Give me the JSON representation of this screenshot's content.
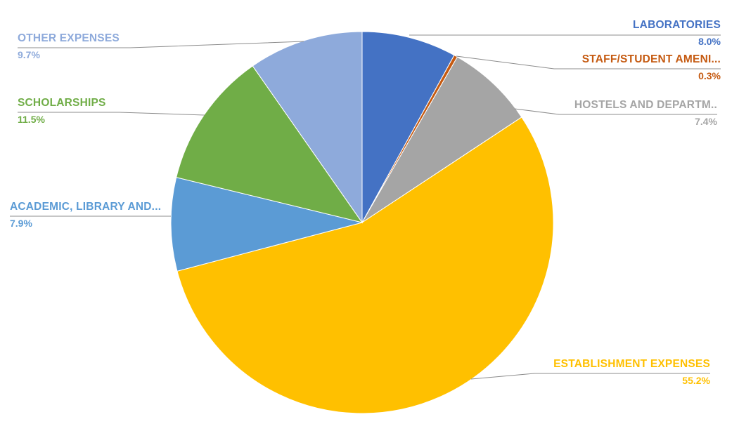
{
  "chart_data": {
    "type": "pie",
    "title": "",
    "legend_position": "none",
    "direction": "clockwise",
    "start_angle_deg": 0,
    "leader_line_color": "#8C8C8C",
    "slices": [
      {
        "label": "LABORATORIES",
        "value": 8.0,
        "pct_label": "8.0%",
        "color": "#4472C4"
      },
      {
        "label": "STAFF/STUDENT AMENI...",
        "value": 0.3,
        "pct_label": "0.3%",
        "color": "#C55A11"
      },
      {
        "label": "HOSTELS AND DEPARTM..",
        "value": 7.4,
        "pct_label": "7.4%",
        "color": "#A5A5A5"
      },
      {
        "label": "ESTABLISHMENT EXPENSES",
        "value": 55.2,
        "pct_label": "55.2%",
        "color": "#FFC000"
      },
      {
        "label": "ACADEMIC, LIBRARY AND...",
        "value": 7.9,
        "pct_label": "7.9%",
        "color": "#5B9BD5"
      },
      {
        "label": "SCHOLARSHIPS",
        "value": 11.5,
        "pct_label": "11.5%",
        "color": "#70AD47"
      },
      {
        "label": "OTHER EXPENSES",
        "value": 9.7,
        "pct_label": "9.7%",
        "color": "#8EAADB"
      }
    ]
  }
}
